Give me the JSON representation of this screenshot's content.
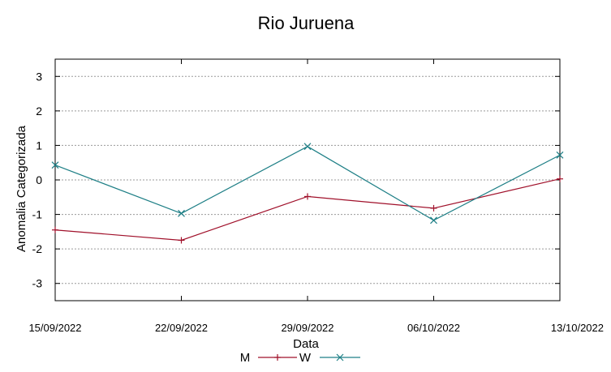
{
  "chart_data": {
    "type": "line",
    "title": "Rio Juruena",
    "xlabel": "Data",
    "ylabel": "Anomalia Categorizada",
    "categories": [
      "15/09/2022",
      "22/09/2022",
      "29/09/2022",
      "06/10/2022",
      "13/10/2022"
    ],
    "yticks": [
      "3",
      "2",
      "1",
      "0",
      "-1",
      "-2",
      "-3"
    ],
    "ylim": [
      -3.5,
      3.5
    ],
    "grid": true,
    "legend_position": "bottom",
    "series": [
      {
        "name": "M",
        "values": [
          -1.45,
          -1.75,
          -0.48,
          -0.82,
          0.03
        ],
        "color": "#a0102a",
        "marker": "plus"
      },
      {
        "name": "W",
        "values": [
          0.43,
          -0.97,
          0.97,
          -1.17,
          0.72
        ],
        "color": "#1e7f86",
        "marker": "cross"
      }
    ]
  }
}
